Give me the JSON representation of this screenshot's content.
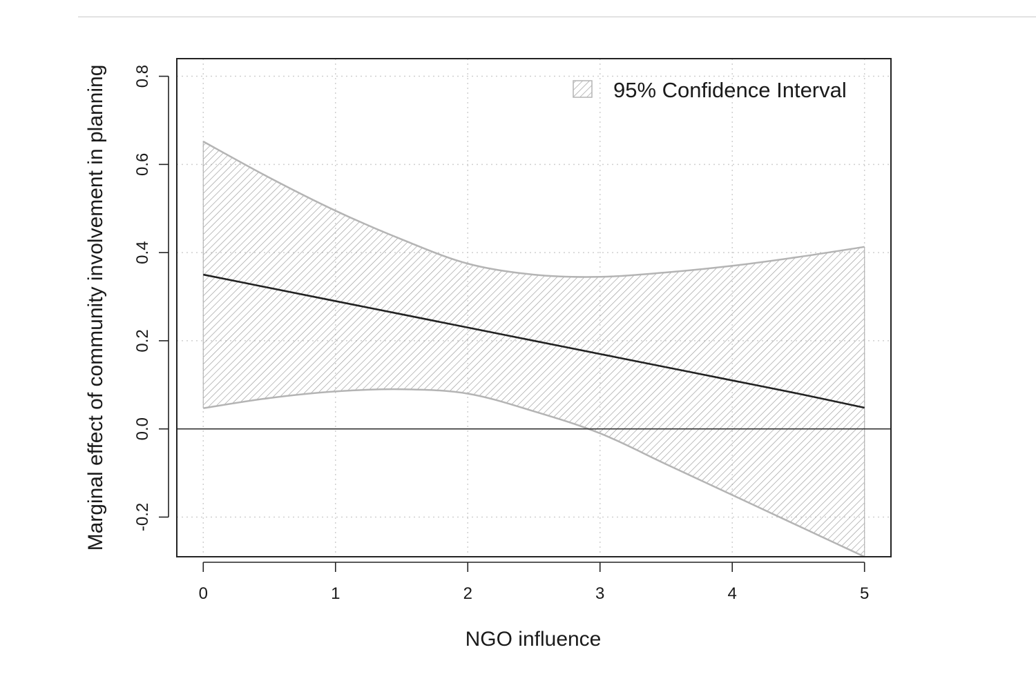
{
  "chart_data": {
    "type": "line",
    "title": "",
    "xlabel": "NGO influence",
    "ylabel": "Marginal effect of community involvement in planning",
    "xlim": [
      -0.2,
      5.2
    ],
    "ylim": [
      -0.29,
      0.84
    ],
    "x_ticks": [
      0,
      1,
      2,
      3,
      4,
      5
    ],
    "y_ticks": [
      -0.2,
      0.0,
      0.2,
      0.4,
      0.6,
      0.8
    ],
    "x_tick_labels": [
      "0",
      "1",
      "2",
      "3",
      "4",
      "5"
    ],
    "y_tick_labels": [
      "-0.2",
      "0.0",
      "0.2",
      "0.4",
      "0.6",
      "0.8"
    ],
    "grid": true,
    "grid_style": "dotted",
    "reference_line_y": 0.0,
    "legend": {
      "position": "top-right",
      "label": "95% Confidence Interval",
      "fill": "hatched"
    },
    "x": [
      0,
      0.5,
      1,
      1.5,
      2,
      2.5,
      3,
      3.5,
      4,
      4.5,
      5
    ],
    "estimate": [
      0.35,
      0.32,
      0.29,
      0.26,
      0.23,
      0.2,
      0.17,
      0.14,
      0.11,
      0.08,
      0.048
    ],
    "ci_upper": [
      0.652,
      0.57,
      0.495,
      0.43,
      0.375,
      0.35,
      0.345,
      0.355,
      0.37,
      0.39,
      0.413
    ],
    "ci_lower": [
      0.047,
      0.07,
      0.085,
      0.09,
      0.08,
      0.04,
      -0.01,
      -0.08,
      -0.15,
      -0.22,
      -0.29
    ],
    "colors": {
      "estimate": "#222222",
      "band_edge": "#b4b4b4",
      "hatch": "#9a9a9a",
      "axis": "#222222",
      "grid": "#cfcfcf"
    }
  }
}
